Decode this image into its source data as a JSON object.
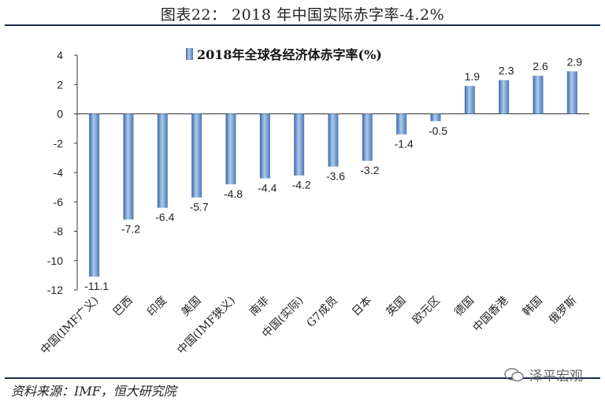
{
  "figure": {
    "title": "图表22：  2018 年中国实际赤字率-4.2%",
    "source": "资料来源：IMF，恒大研究院",
    "watermark": "泽平宏观"
  },
  "colors": {
    "bar_dark": "#3b66a8",
    "bar_mid": "#7fa3d4",
    "bar_light": "#aecbea",
    "axis": "#333333"
  },
  "chart_data": {
    "type": "bar",
    "legend": "2018年全球各经济体赤字率(%)",
    "legend_position": "top-center",
    "categories": [
      "中国(IMF广义)",
      "巴西",
      "印度",
      "美国",
      "中国(IMF狭义)",
      "南非",
      "中国(实际)",
      "G7成员",
      "日本",
      "英国",
      "欧元区",
      "德国",
      "中国香港",
      "韩国",
      "俄罗斯"
    ],
    "values": [
      -11.1,
      -7.2,
      -6.4,
      -5.7,
      -4.8,
      -4.4,
      -4.2,
      -3.6,
      -3.2,
      -1.4,
      -0.5,
      1.9,
      2.3,
      2.6,
      2.9
    ],
    "ylim": [
      -12,
      4
    ],
    "yticks": [
      4,
      2,
      0,
      -2,
      -4,
      -6,
      -8,
      -10,
      -12
    ],
    "grid": false
  }
}
